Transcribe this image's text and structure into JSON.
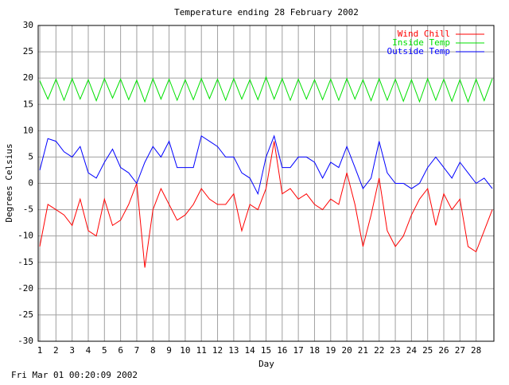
{
  "chart_data": {
    "type": "line",
    "title": "Temperature ending 28 February 2002",
    "x_label": "Day",
    "y_label": "Degrees Celsius",
    "footer": "Fri Mar 01 00:20:09 2002",
    "x": [
      1,
      1.5,
      2,
      2.5,
      3,
      3.5,
      4,
      4.5,
      5,
      5.5,
      6,
      6.5,
      7,
      7.5,
      8,
      8.5,
      9,
      9.5,
      10,
      10.5,
      11,
      11.5,
      12,
      12.5,
      13,
      13.5,
      14,
      14.5,
      15,
      15.5,
      16,
      16.5,
      17,
      17.5,
      18,
      18.5,
      19,
      19.5,
      20,
      20.5,
      21,
      21.5,
      22,
      22.5,
      23,
      23.5,
      24,
      24.5,
      25,
      25.5,
      26,
      26.5,
      27,
      27.5,
      28,
      28.5,
      29
    ],
    "series": [
      {
        "name": "Wind Chill",
        "color": "#ff0000",
        "values": [
          -12,
          -4,
          -5,
          -6,
          -8,
          -3,
          -9,
          -10,
          -3,
          -8,
          -7,
          -4,
          0,
          -16,
          -5,
          -1,
          -4,
          -7,
          -6,
          -4,
          -1,
          -3,
          -4,
          -4,
          -2,
          -9,
          -4,
          -5,
          -1,
          8,
          -2,
          -1,
          -3,
          -2,
          -4,
          -5,
          -3,
          -4,
          2,
          -4,
          -12,
          -6,
          1,
          -9,
          -12,
          -10,
          -6,
          -3,
          -1,
          -8,
          -2,
          -5,
          -3,
          -12,
          -13,
          -9,
          -5
        ]
      },
      {
        "name": "Inside Temp",
        "color": "#00e000",
        "values": [
          19.5,
          16,
          19.8,
          15.8,
          19.9,
          16,
          19.7,
          15.7,
          19.9,
          16.2,
          19.8,
          15.9,
          19.6,
          15.5,
          19.9,
          16,
          19.8,
          15.8,
          19.7,
          15.9,
          19.9,
          16.1,
          19.8,
          15.8,
          19.9,
          16,
          19.7,
          15.9,
          20.2,
          16,
          19.9,
          15.8,
          19.8,
          16,
          19.7,
          15.9,
          19.8,
          15.8,
          19.9,
          16,
          19.7,
          15.7,
          19.9,
          15.8,
          19.8,
          15.6,
          19.7,
          15.5,
          19.9,
          15.8,
          19.8,
          15.6,
          19.7,
          15.5,
          19.8,
          15.7,
          19.9
        ]
      },
      {
        "name": "Outside Temp",
        "color": "#0000ff",
        "values": [
          2.5,
          8.5,
          8,
          6,
          5,
          7,
          2,
          1,
          4,
          6.5,
          3,
          2,
          0,
          4,
          7,
          5,
          8,
          3,
          3,
          3,
          9,
          8,
          7,
          5,
          5,
          2,
          1,
          -2,
          5,
          9,
          3,
          3,
          5,
          5,
          4,
          1,
          4,
          3,
          7,
          3,
          -1,
          1,
          8,
          2,
          0,
          0,
          -1,
          0,
          3,
          5,
          3,
          1,
          4,
          2,
          0,
          1,
          -1
        ]
      }
    ],
    "xlim": [
      0.9,
      29.1
    ],
    "xticks": [
      1,
      2,
      3,
      4,
      5,
      6,
      7,
      8,
      9,
      10,
      11,
      12,
      13,
      14,
      15,
      16,
      17,
      18,
      19,
      20,
      21,
      22,
      23,
      24,
      25,
      26,
      27,
      28
    ],
    "ylim": [
      -30,
      30
    ],
    "yticks": [
      -30,
      -25,
      -20,
      -15,
      -10,
      -5,
      0,
      5,
      10,
      15,
      20,
      25,
      30
    ],
    "grid": true,
    "legend": "top-right"
  }
}
